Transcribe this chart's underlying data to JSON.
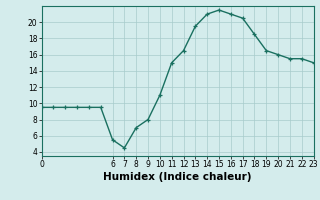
{
  "hours": [
    0,
    1,
    2,
    3,
    4,
    5,
    6,
    7,
    8,
    9,
    10,
    11,
    12,
    13,
    14,
    15,
    16,
    17,
    18,
    19,
    20,
    21,
    22,
    23
  ],
  "humidex": [
    9.5,
    9.5,
    9.5,
    9.5,
    9.5,
    9.5,
    5.5,
    4.5,
    7.0,
    8.0,
    11.0,
    15.0,
    16.5,
    19.5,
    21.0,
    21.5,
    21.0,
    20.5,
    18.5,
    16.5,
    16.0,
    15.5,
    15.5,
    15.0
  ],
  "line_color": "#1a7060",
  "marker": "+",
  "marker_size": 3.5,
  "bg_color": "#d4ecec",
  "grid_color": "#a8cccc",
  "xlabel": "Humidex (Indice chaleur)",
  "xlim": [
    0,
    23
  ],
  "ylim": [
    3.5,
    22
  ],
  "yticks": [
    4,
    6,
    8,
    10,
    12,
    14,
    16,
    18,
    20
  ],
  "xticks": [
    0,
    6,
    7,
    8,
    9,
    10,
    11,
    12,
    13,
    14,
    15,
    16,
    17,
    18,
    19,
    20,
    21,
    22,
    23
  ],
  "tick_fontsize": 5.5,
  "label_fontsize": 7.5,
  "line_width": 1.0
}
